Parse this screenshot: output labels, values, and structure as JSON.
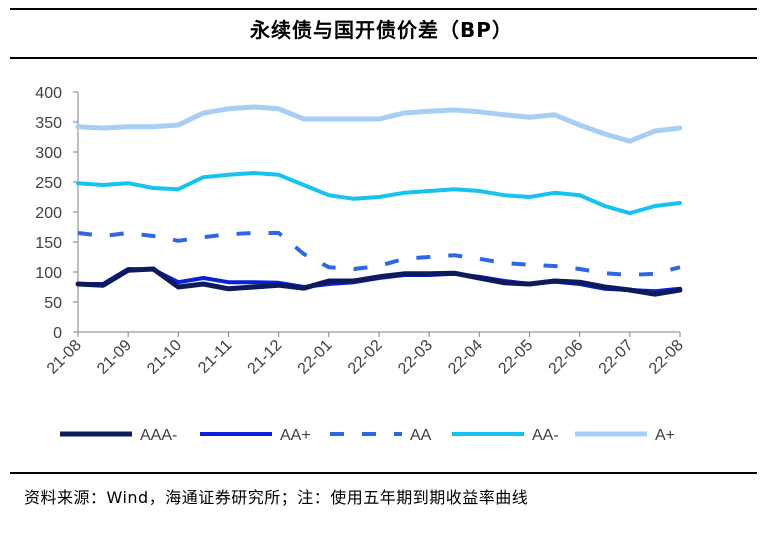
{
  "title": "永续债与国开债价差（BP）",
  "source": "资料来源：Wind，海通证券研究所；注：使用五年期到期收益率曲线",
  "chart_data": {
    "type": "line",
    "ylim": [
      0,
      400
    ],
    "yticks": [
      0,
      50,
      100,
      150,
      200,
      250,
      300,
      350,
      400
    ],
    "xticks": [
      "21-08",
      "21-09",
      "21-10",
      "21-11",
      "21-12",
      "22-01",
      "22-02",
      "22-03",
      "22-04",
      "22-05",
      "22-06",
      "22-07",
      "22-08"
    ],
    "x": [
      "21-08",
      "21-08b",
      "21-09",
      "21-09b",
      "21-10",
      "21-10b",
      "21-11",
      "21-11b",
      "21-12",
      "21-12b",
      "22-01",
      "22-01b",
      "22-02",
      "22-02b",
      "22-03",
      "22-03b",
      "22-04",
      "22-04b",
      "22-05",
      "22-05b",
      "22-06",
      "22-06b",
      "22-07",
      "22-07b",
      "22-08"
    ],
    "legend_position": "bottom",
    "grid": false,
    "series": [
      {
        "name": "AAA-",
        "color": "#0d1a5c",
        "dash": "solid",
        "width": 5,
        "values": [
          80,
          78,
          103,
          105,
          75,
          80,
          72,
          75,
          78,
          73,
          85,
          85,
          92,
          97,
          97,
          98,
          90,
          82,
          80,
          85,
          83,
          75,
          70,
          63,
          70
        ]
      },
      {
        "name": "AA+",
        "color": "#0a1fd6",
        "dash": "solid",
        "width": 4,
        "values": [
          80,
          80,
          105,
          104,
          83,
          90,
          83,
          83,
          82,
          75,
          80,
          83,
          90,
          95,
          95,
          97,
          92,
          85,
          80,
          84,
          80,
          72,
          70,
          68,
          72
        ]
      },
      {
        "name": "AA",
        "color": "#2e66e6",
        "dash": "dash",
        "width": 4,
        "values": [
          165,
          160,
          165,
          160,
          152,
          158,
          163,
          165,
          165,
          130,
          108,
          105,
          110,
          122,
          125,
          128,
          122,
          115,
          112,
          110,
          105,
          98,
          95,
          97,
          108
        ]
      },
      {
        "name": "AA-",
        "color": "#16c2ef",
        "dash": "solid",
        "width": 4,
        "values": [
          248,
          245,
          248,
          240,
          238,
          258,
          262,
          265,
          262,
          245,
          228,
          222,
          225,
          232,
          235,
          238,
          235,
          228,
          225,
          232,
          228,
          210,
          198,
          210,
          215
        ]
      },
      {
        "name": "A+",
        "color": "#a7cff4",
        "dash": "solid",
        "width": 5,
        "values": [
          342,
          340,
          342,
          342,
          345,
          365,
          372,
          375,
          372,
          355,
          355,
          355,
          355,
          365,
          368,
          370,
          367,
          362,
          358,
          362,
          345,
          330,
          318,
          335,
          340
        ]
      }
    ]
  }
}
